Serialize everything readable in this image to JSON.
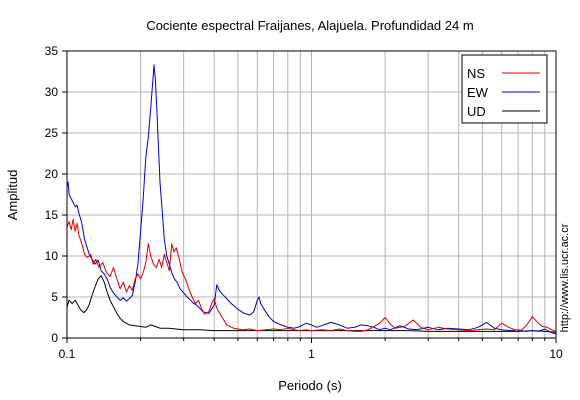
{
  "chart_data": {
    "type": "line",
    "title": "Cociente espectral Fraijanes, Alajuela. Profundidad 24 m",
    "xlabel": "Periodo (s)",
    "ylabel": "Amplitud",
    "xscale": "log",
    "xlim": [
      0.1,
      10
    ],
    "ylim": [
      0,
      35
    ],
    "x_ticks": [
      0.1,
      1,
      10
    ],
    "x_tick_labels": [
      "0.1",
      "1",
      "10"
    ],
    "y_ticks": [
      0,
      5,
      10,
      15,
      20,
      25,
      30,
      35
    ],
    "y_tick_labels": [
      "0",
      "5",
      "10",
      "15",
      "20",
      "25",
      "30",
      "35"
    ],
    "grid": true,
    "legend_position": "top-right",
    "side_note": "http://www.lis.ucr.ac.cr",
    "series": [
      {
        "name": "NS",
        "color": "#dd0000",
        "points": [
          [
            0.1,
            13.5
          ],
          [
            0.102,
            14.2
          ],
          [
            0.104,
            13.2
          ],
          [
            0.106,
            14.5
          ],
          [
            0.108,
            13.0
          ],
          [
            0.11,
            14.0
          ],
          [
            0.112,
            12.5
          ],
          [
            0.115,
            11.5
          ],
          [
            0.118,
            10.2
          ],
          [
            0.121,
            9.8
          ],
          [
            0.125,
            10.2
          ],
          [
            0.128,
            9.0
          ],
          [
            0.131,
            9.6
          ],
          [
            0.135,
            8.6
          ],
          [
            0.14,
            9.2
          ],
          [
            0.145,
            8.0
          ],
          [
            0.15,
            7.5
          ],
          [
            0.155,
            8.6
          ],
          [
            0.16,
            7.2
          ],
          [
            0.165,
            6.0
          ],
          [
            0.17,
            6.8
          ],
          [
            0.175,
            5.6
          ],
          [
            0.18,
            6.4
          ],
          [
            0.185,
            5.8
          ],
          [
            0.19,
            7.2
          ],
          [
            0.195,
            7.8
          ],
          [
            0.2,
            7.2
          ],
          [
            0.205,
            8.0
          ],
          [
            0.21,
            9.2
          ],
          [
            0.215,
            11.5
          ],
          [
            0.22,
            10.0
          ],
          [
            0.226,
            9.0
          ],
          [
            0.232,
            8.6
          ],
          [
            0.238,
            9.6
          ],
          [
            0.244,
            8.6
          ],
          [
            0.25,
            10.2
          ],
          [
            0.256,
            9.2
          ],
          [
            0.262,
            8.2
          ],
          [
            0.268,
            11.5
          ],
          [
            0.274,
            10.5
          ],
          [
            0.28,
            11.0
          ],
          [
            0.288,
            9.6
          ],
          [
            0.296,
            8.0
          ],
          [
            0.305,
            7.2
          ],
          [
            0.315,
            6.0
          ],
          [
            0.325,
            5.0
          ],
          [
            0.335,
            4.2
          ],
          [
            0.345,
            4.6
          ],
          [
            0.355,
            3.6
          ],
          [
            0.365,
            2.9
          ],
          [
            0.38,
            3.2
          ],
          [
            0.39,
            4.2
          ],
          [
            0.4,
            4.8
          ],
          [
            0.41,
            3.6
          ],
          [
            0.43,
            2.6
          ],
          [
            0.45,
            1.6
          ],
          [
            0.48,
            1.2
          ],
          [
            0.52,
            1.0
          ],
          [
            0.56,
            1.1
          ],
          [
            0.6,
            0.9
          ],
          [
            0.65,
            1.0
          ],
          [
            0.7,
            1.1
          ],
          [
            0.75,
            1.0
          ],
          [
            0.8,
            1.2
          ],
          [
            0.85,
            1.0
          ],
          [
            0.9,
            0.9
          ],
          [
            0.95,
            1.0
          ],
          [
            1.0,
            0.9
          ],
          [
            1.1,
            1.0
          ],
          [
            1.2,
            0.9
          ],
          [
            1.3,
            1.1
          ],
          [
            1.4,
            0.9
          ],
          [
            1.5,
            0.8
          ],
          [
            1.6,
            0.8
          ],
          [
            1.7,
            1.0
          ],
          [
            1.8,
            1.4
          ],
          [
            1.9,
            1.8
          ],
          [
            2.0,
            2.5
          ],
          [
            2.1,
            1.7
          ],
          [
            2.2,
            1.2
          ],
          [
            2.4,
            1.4
          ],
          [
            2.6,
            2.2
          ],
          [
            2.8,
            1.3
          ],
          [
            3.0,
            1.0
          ],
          [
            3.3,
            1.3
          ],
          [
            3.6,
            1.1
          ],
          [
            4.0,
            1.0
          ],
          [
            4.4,
            0.9
          ],
          [
            4.8,
            1.0
          ],
          [
            5.2,
            1.1
          ],
          [
            5.6,
            1.0
          ],
          [
            6.0,
            1.8
          ],
          [
            6.4,
            1.3
          ],
          [
            6.8,
            1.0
          ],
          [
            7.2,
            0.9
          ],
          [
            7.6,
            1.6
          ],
          [
            8.0,
            2.6
          ],
          [
            8.4,
            1.9
          ],
          [
            8.8,
            1.4
          ],
          [
            9.2,
            1.3
          ],
          [
            9.6,
            1.0
          ],
          [
            10.0,
            0.8
          ]
        ]
      },
      {
        "name": "EW",
        "color": "#0000cc",
        "points": [
          [
            0.1,
            18.5
          ],
          [
            0.101,
            19.0
          ],
          [
            0.102,
            17.5
          ],
          [
            0.104,
            17.0
          ],
          [
            0.106,
            16.5
          ],
          [
            0.108,
            16.0
          ],
          [
            0.11,
            16.2
          ],
          [
            0.112,
            15.2
          ],
          [
            0.115,
            14.0
          ],
          [
            0.118,
            12.0
          ],
          [
            0.121,
            11.0
          ],
          [
            0.124,
            10.0
          ],
          [
            0.127,
            9.6
          ],
          [
            0.13,
            9.0
          ],
          [
            0.134,
            9.5
          ],
          [
            0.138,
            8.2
          ],
          [
            0.142,
            7.8
          ],
          [
            0.146,
            7.2
          ],
          [
            0.15,
            6.2
          ],
          [
            0.155,
            5.5
          ],
          [
            0.16,
            5.0
          ],
          [
            0.165,
            4.6
          ],
          [
            0.17,
            4.9
          ],
          [
            0.175,
            4.5
          ],
          [
            0.18,
            4.8
          ],
          [
            0.185,
            5.2
          ],
          [
            0.19,
            6.8
          ],
          [
            0.195,
            9.0
          ],
          [
            0.2,
            13.0
          ],
          [
            0.205,
            17.0
          ],
          [
            0.21,
            22.0
          ],
          [
            0.215,
            24.5
          ],
          [
            0.22,
            28.0
          ],
          [
            0.224,
            31.0
          ],
          [
            0.227,
            33.3
          ],
          [
            0.23,
            31.5
          ],
          [
            0.233,
            28.0
          ],
          [
            0.236,
            24.0
          ],
          [
            0.24,
            19.0
          ],
          [
            0.245,
            15.5
          ],
          [
            0.25,
            12.0
          ],
          [
            0.256,
            10.0
          ],
          [
            0.262,
            9.0
          ],
          [
            0.268,
            8.0
          ],
          [
            0.275,
            7.2
          ],
          [
            0.282,
            6.8
          ],
          [
            0.29,
            6.0
          ],
          [
            0.3,
            5.5
          ],
          [
            0.31,
            5.0
          ],
          [
            0.32,
            4.6
          ],
          [
            0.33,
            4.2
          ],
          [
            0.34,
            4.0
          ],
          [
            0.36,
            3.2
          ],
          [
            0.38,
            3.0
          ],
          [
            0.4,
            4.0
          ],
          [
            0.41,
            6.5
          ],
          [
            0.42,
            5.8
          ],
          [
            0.43,
            5.4
          ],
          [
            0.45,
            4.8
          ],
          [
            0.47,
            4.2
          ],
          [
            0.5,
            3.5
          ],
          [
            0.53,
            3.0
          ],
          [
            0.56,
            2.8
          ],
          [
            0.58,
            3.2
          ],
          [
            0.6,
            4.6
          ],
          [
            0.61,
            5.0
          ],
          [
            0.62,
            4.2
          ],
          [
            0.64,
            3.5
          ],
          [
            0.67,
            2.6
          ],
          [
            0.7,
            2.0
          ],
          [
            0.75,
            1.6
          ],
          [
            0.8,
            1.3
          ],
          [
            0.85,
            1.2
          ],
          [
            0.9,
            1.4
          ],
          [
            0.95,
            1.8
          ],
          [
            1.0,
            1.6
          ],
          [
            1.05,
            1.3
          ],
          [
            1.1,
            1.5
          ],
          [
            1.2,
            1.9
          ],
          [
            1.3,
            1.6
          ],
          [
            1.4,
            1.2
          ],
          [
            1.5,
            1.3
          ],
          [
            1.6,
            1.6
          ],
          [
            1.7,
            1.5
          ],
          [
            1.8,
            1.3
          ],
          [
            1.9,
            1.0
          ],
          [
            2.0,
            1.2
          ],
          [
            2.1,
            1.0
          ],
          [
            2.3,
            1.5
          ],
          [
            2.5,
            1.1
          ],
          [
            2.7,
            1.0
          ],
          [
            3.0,
            1.3
          ],
          [
            3.3,
            1.0
          ],
          [
            3.6,
            1.2
          ],
          [
            4.0,
            1.1
          ],
          [
            4.4,
            1.0
          ],
          [
            4.8,
            1.3
          ],
          [
            5.2,
            1.9
          ],
          [
            5.6,
            1.2
          ],
          [
            6.0,
            1.0
          ],
          [
            6.5,
            0.9
          ],
          [
            7.0,
            1.0
          ],
          [
            7.5,
            0.8
          ],
          [
            8.0,
            0.9
          ],
          [
            8.5,
            0.8
          ],
          [
            9.0,
            1.1
          ],
          [
            9.5,
            0.7
          ],
          [
            10.0,
            0.5
          ]
        ]
      },
      {
        "name": "UD",
        "color": "#000000",
        "points": [
          [
            0.1,
            3.8
          ],
          [
            0.102,
            4.6
          ],
          [
            0.105,
            4.2
          ],
          [
            0.108,
            4.6
          ],
          [
            0.111,
            4.0
          ],
          [
            0.114,
            3.4
          ],
          [
            0.117,
            3.1
          ],
          [
            0.12,
            3.4
          ],
          [
            0.123,
            4.0
          ],
          [
            0.126,
            5.0
          ],
          [
            0.13,
            6.2
          ],
          [
            0.134,
            7.2
          ],
          [
            0.138,
            7.6
          ],
          [
            0.142,
            6.8
          ],
          [
            0.146,
            5.6
          ],
          [
            0.15,
            4.6
          ],
          [
            0.155,
            3.8
          ],
          [
            0.16,
            3.0
          ],
          [
            0.165,
            2.4
          ],
          [
            0.17,
            2.0
          ],
          [
            0.175,
            1.8
          ],
          [
            0.18,
            1.6
          ],
          [
            0.19,
            1.5
          ],
          [
            0.2,
            1.4
          ],
          [
            0.21,
            1.3
          ],
          [
            0.22,
            1.6
          ],
          [
            0.23,
            1.4
          ],
          [
            0.24,
            1.2
          ],
          [
            0.26,
            1.2
          ],
          [
            0.28,
            1.1
          ],
          [
            0.3,
            1.0
          ],
          [
            0.35,
            1.0
          ],
          [
            0.4,
            0.9
          ],
          [
            0.5,
            0.9
          ],
          [
            0.6,
            0.9
          ],
          [
            0.7,
            0.9
          ],
          [
            0.8,
            0.9
          ],
          [
            1.0,
            0.9
          ],
          [
            1.2,
            0.9
          ],
          [
            1.5,
            0.9
          ],
          [
            2.0,
            0.9
          ],
          [
            2.5,
            0.9
          ],
          [
            3.0,
            0.8
          ],
          [
            4.0,
            0.8
          ],
          [
            5.0,
            0.8
          ],
          [
            6.0,
            0.8
          ],
          [
            7.0,
            0.8
          ],
          [
            8.0,
            0.9
          ],
          [
            9.0,
            0.8
          ],
          [
            10.0,
            0.7
          ]
        ]
      }
    ]
  }
}
